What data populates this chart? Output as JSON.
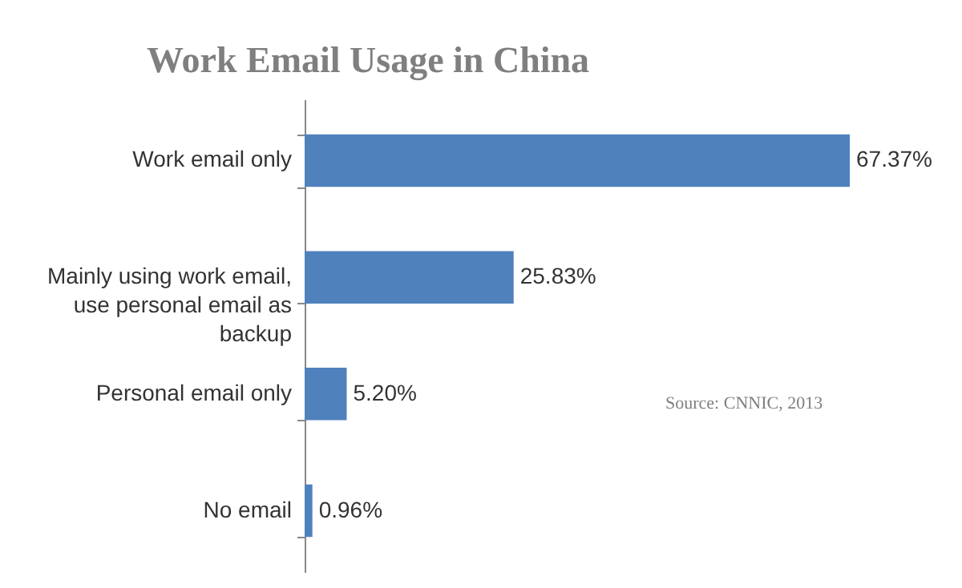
{
  "chart_data": {
    "type": "bar",
    "orientation": "horizontal",
    "title": "Work Email Usage in China",
    "categories": [
      "Work email only",
      "Mainly using work email, use personal email as backup",
      "Personal email only",
      "No email"
    ],
    "values": [
      67.37,
      25.83,
      5.2,
      0.96
    ],
    "value_labels": [
      "67.37%",
      "25.83%",
      "5.20%",
      "0.96%"
    ],
    "color": "#4f81bd",
    "annotations": [
      "Source:  CNNIC, 2013"
    ]
  }
}
